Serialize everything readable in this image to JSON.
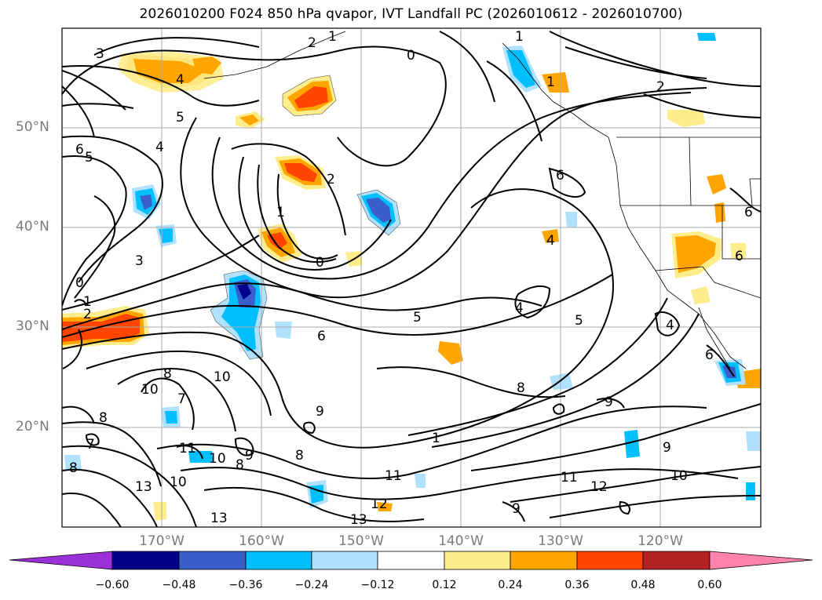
{
  "title": "2026010200 F024 850 hPa qvapor, IVT Landfall PC (2026010612 - 2026010700)",
  "map": {
    "lat_labels": [
      "50°N",
      "40°N",
      "30°N",
      "20°N"
    ],
    "lon_labels": [
      "170°W",
      "160°W",
      "150°W",
      "140°W",
      "130°W",
      "120°W"
    ],
    "contour_labels": [
      "3",
      "4",
      "5",
      "4",
      "6",
      "5",
      "2",
      "1",
      "0",
      "1",
      "2",
      "1",
      "0",
      "3",
      "0",
      "1",
      "2",
      "1",
      "2",
      "6",
      "4",
      "6",
      "6",
      "4",
      "5",
      "5",
      "4",
      "6",
      "6",
      "8",
      "9",
      "8",
      "10",
      "10",
      "8",
      "7",
      "8",
      "9",
      "7",
      "11",
      "10",
      "8",
      "8",
      "10",
      "13",
      "13",
      "12",
      "13",
      "11",
      "11",
      "12",
      "10",
      "9",
      "9",
      "1",
      "9"
    ]
  },
  "colorbar": {
    "ticks": [
      "−0.60",
      "−0.48",
      "−0.36",
      "−0.24",
      "−0.12",
      "0.12",
      "0.24",
      "0.36",
      "0.48",
      "0.60"
    ],
    "colors": [
      "#9b30d9",
      "#00008b",
      "#3a5fcd",
      "#00bfff",
      "#b0e2ff",
      "#ffffff",
      "#ffec8b",
      "#ffa500",
      "#ff4500",
      "#b22222",
      "#ff82ab"
    ]
  }
}
